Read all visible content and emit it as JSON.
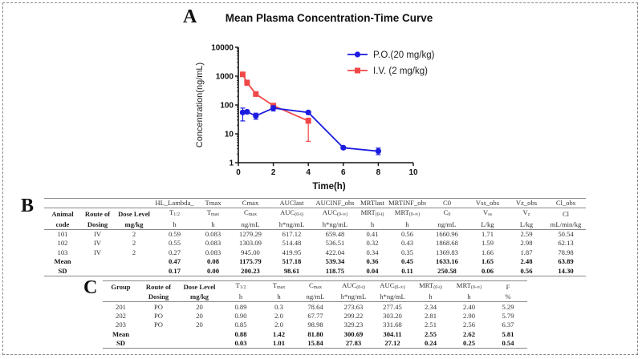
{
  "panels": {
    "a": "A",
    "b": "B",
    "c": "C"
  },
  "chart_data": {
    "type": "line",
    "title": "Mean Plasma Concentration-Time Curve",
    "xlabel": "Time(h)",
    "ylabel": "Concentration(ng/mL)",
    "xlim": [
      0,
      10
    ],
    "ylim": [
      1,
      10000
    ],
    "yscale": "log",
    "xticks": [
      "0",
      "2",
      "4",
      "6",
      "8",
      "10"
    ],
    "yticks": [
      "1",
      "10",
      "100",
      "1000",
      "10000"
    ],
    "grid": false,
    "legend_position": "top-right",
    "series": [
      {
        "name": "P.O.(20 mg/kg)",
        "color": "#1c1ce0",
        "marker": "circle",
        "x": [
          0.25,
          0.5,
          1,
          2,
          4,
          6,
          8
        ],
        "y": [
          55,
          58,
          42,
          78,
          55,
          3.3,
          2.5
        ],
        "err_low": [
          28,
          50,
          32,
          62,
          48,
          3.0,
          1.9
        ],
        "err_high": [
          78,
          66,
          52,
          94,
          62,
          3.6,
          3.2
        ]
      },
      {
        "name": "I.V. (2 mg/kg)",
        "color": "#f04848",
        "marker": "square",
        "x": [
          0.25,
          0.5,
          1,
          2,
          4
        ],
        "y": [
          1150,
          600,
          240,
          95,
          28
        ],
        "err_low": [
          1000,
          480,
          200,
          85,
          5.5
        ],
        "err_high": [
          1300,
          720,
          280,
          105,
          35
        ]
      }
    ]
  },
  "table_b": {
    "header1": [
      "",
      "",
      "",
      "HL_Lambda_",
      "Tmax",
      "Cmax",
      "AUClast",
      "AUCINF_obs",
      "MRTlast",
      "MRTINF_obs",
      "C0",
      "Vss_obs",
      "Vz_obs",
      "Cl_obs"
    ],
    "header2": [
      {
        "t": "Animal",
        "s": ""
      },
      {
        "t": "Route of",
        "s": ""
      },
      {
        "t": "Dose Level",
        "s": ""
      },
      {
        "t": "T",
        "s": "1/2"
      },
      {
        "t": "T",
        "s": "max"
      },
      {
        "t": "C",
        "s": "max"
      },
      {
        "t": "AUC",
        "s": "(0-t)"
      },
      {
        "t": "AUC",
        "s": "(0-∞)"
      },
      {
        "t": "MRT",
        "s": "(0-t)"
      },
      {
        "t": "MRT",
        "s": "(0-∞)"
      },
      {
        "t": "C",
        "s": "0"
      },
      {
        "t": "V",
        "s": "ss"
      },
      {
        "t": "V",
        "s": "z"
      },
      {
        "t": "Cl",
        "s": ""
      }
    ],
    "header3": [
      "code",
      "Dosing",
      "mg/kg",
      "h",
      "h",
      "ng/mL",
      "h*ng/mL",
      "h*ng/mL",
      "h",
      "h",
      "ng/mL",
      "L/kg",
      "L/kg",
      "mL/min/kg"
    ],
    "rows": [
      [
        "101",
        "IV",
        "2",
        "0.59",
        "0.083",
        "1279.29",
        "617.12",
        "659.48",
        "0.41",
        "0.56",
        "1660.96",
        "1.71",
        "2.59",
        "50.54"
      ],
      [
        "102",
        "IV",
        "2",
        "0.55",
        "0.083",
        "1303.09",
        "514.48",
        "536.51",
        "0.32",
        "0.43",
        "1868.68",
        "1.59",
        "2.98",
        "62.13"
      ],
      [
        "103",
        "IV",
        "2",
        "0.27",
        "0.083",
        "945.00",
        "419.95",
        "422.04",
        "0.34",
        "0.35",
        "1369.83",
        "1.66",
        "1.87",
        "78.98"
      ],
      [
        "Mean",
        "",
        "",
        "0.47",
        "0.08",
        "1175.79",
        "517.18",
        "539.34",
        "0.36",
        "0.45",
        "1633.16",
        "1.65",
        "2.48",
        "63.89"
      ],
      [
        "SD",
        "",
        "",
        "0.17",
        "0.00",
        "200.23",
        "98.61",
        "118.75",
        "0.04",
        "0.11",
        "250.58",
        "0.06",
        "0.56",
        "14.30"
      ]
    ]
  },
  "table_c": {
    "header1": [
      {
        "t": "Group",
        "s": ""
      },
      {
        "t": "Route of",
        "s": ""
      },
      {
        "t": "Dose Level",
        "s": ""
      },
      {
        "t": "T",
        "s": "1/2"
      },
      {
        "t": "T",
        "s": "max"
      },
      {
        "t": "C",
        "s": "max"
      },
      {
        "t": "AUC",
        "s": "(0-t)"
      },
      {
        "t": "AUC",
        "s": "(0-∞)"
      },
      {
        "t": "MRT",
        "s": "(0-t)"
      },
      {
        "t": "MRT",
        "s": "(0-∞)"
      },
      {
        "t": "F",
        "s": ""
      }
    ],
    "header2": [
      "",
      "Dosing",
      "mg/kg",
      "h",
      "h",
      "ng/mL",
      "h*ng/mL",
      "h*ng/mL",
      "h",
      "h",
      "%"
    ],
    "rows": [
      [
        "201",
        "PO",
        "20",
        "0.89",
        "0.3",
        "78.64",
        "273.63",
        "277.45",
        "2.34",
        "2.40",
        "5.29"
      ],
      [
        "202",
        "PO",
        "20",
        "0.90",
        "2.0",
        "67.77",
        "299.22",
        "303.20",
        "2.81",
        "2.90",
        "5.79"
      ],
      [
        "203",
        "PO",
        "20",
        "0.85",
        "2.0",
        "98.98",
        "329.23",
        "331.68",
        "2.51",
        "2.56",
        "6.37"
      ],
      [
        "Mean",
        "",
        "",
        "0.88",
        "1.42",
        "81.80",
        "300.69",
        "304.11",
        "2.55",
        "2.62",
        "5.81"
      ],
      [
        "SD",
        "",
        "",
        "0.03",
        "1.01",
        "15.84",
        "27.83",
        "27.12",
        "0.24",
        "0.25",
        "0.54"
      ]
    ]
  }
}
